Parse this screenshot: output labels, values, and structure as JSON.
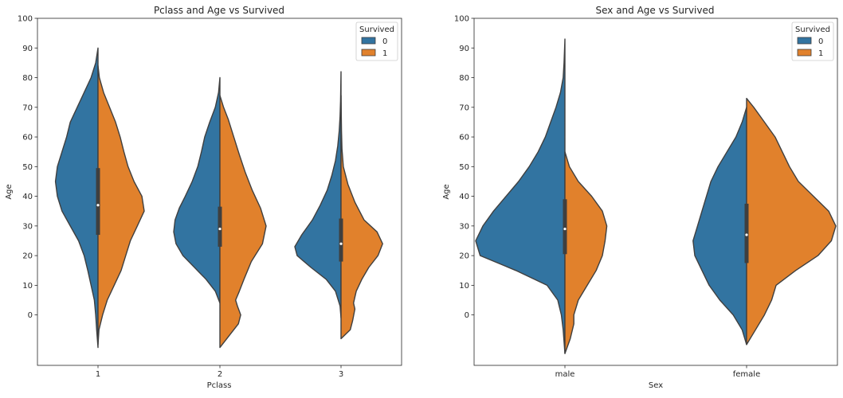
{
  "chart_data": [
    {
      "type": "violin",
      "title": "Pclass and Age vs Survived",
      "xlabel": "Pclass",
      "ylabel": "Age",
      "categories": [
        "1",
        "2",
        "3"
      ],
      "ylim": [
        -17,
        100
      ],
      "yticks": [
        0,
        10,
        20,
        30,
        40,
        50,
        60,
        70,
        80,
        90,
        100
      ],
      "split": true,
      "legend": {
        "title": "Survived",
        "placement": "top-right",
        "entries": [
          "0",
          "1"
        ]
      },
      "colors": {
        "0": "#3274a1",
        "1": "#e1812c",
        "edge": "#3f3f3f",
        "box": "#3f3f3f",
        "median": "#ffffff"
      },
      "series": [
        {
          "name": "0",
          "violins": [
            {
              "category": "1",
              "profile": [
                [
                  -11,
                  0
                ],
                [
                  -5,
                  0.03
                ],
                [
                  0,
                  0.05
                ],
                [
                  5,
                  0.08
                ],
                [
                  10,
                  0.15
                ],
                [
                  15,
                  0.22
                ],
                [
                  20,
                  0.3
                ],
                [
                  25,
                  0.42
                ],
                [
                  30,
                  0.6
                ],
                [
                  35,
                  0.78
                ],
                [
                  40,
                  0.88
                ],
                [
                  45,
                  0.92
                ],
                [
                  50,
                  0.88
                ],
                [
                  55,
                  0.78
                ],
                [
                  60,
                  0.68
                ],
                [
                  65,
                  0.6
                ],
                [
                  70,
                  0.45
                ],
                [
                  75,
                  0.3
                ],
                [
                  80,
                  0.15
                ],
                [
                  85,
                  0.05
                ],
                [
                  90,
                  0
                ]
              ]
            },
            {
              "category": "2",
              "profile": [
                [
                  4,
                  0
                ],
                [
                  8,
                  0.1
                ],
                [
                  12,
                  0.3
                ],
                [
                  16,
                  0.55
                ],
                [
                  20,
                  0.8
                ],
                [
                  24,
                  0.95
                ],
                [
                  28,
                  1.0
                ],
                [
                  32,
                  0.97
                ],
                [
                  36,
                  0.88
                ],
                [
                  40,
                  0.75
                ],
                [
                  45,
                  0.6
                ],
                [
                  50,
                  0.48
                ],
                [
                  55,
                  0.4
                ],
                [
                  60,
                  0.33
                ],
                [
                  65,
                  0.22
                ],
                [
                  70,
                  0.1
                ],
                [
                  75,
                  0.03
                ],
                [
                  80,
                  0
                ]
              ]
            },
            {
              "category": "3",
              "profile": [
                [
                  -1,
                  0
                ],
                [
                  3,
                  0.02
                ],
                [
                  8,
                  0.12
                ],
                [
                  12,
                  0.32
                ],
                [
                  16,
                  0.65
                ],
                [
                  20,
                  0.95
                ],
                [
                  23,
                  1.0
                ],
                [
                  27,
                  0.85
                ],
                [
                  32,
                  0.62
                ],
                [
                  37,
                  0.45
                ],
                [
                  42,
                  0.3
                ],
                [
                  47,
                  0.2
                ],
                [
                  52,
                  0.12
                ],
                [
                  57,
                  0.07
                ],
                [
                  62,
                  0.04
                ],
                [
                  67,
                  0.02
                ],
                [
                  72,
                  0.01
                ],
                [
                  77,
                  0.005
                ],
                [
                  82,
                  0
                ]
              ]
            }
          ],
          "boxes": [
            {
              "category": "1",
              "q1": 27,
              "median": 37,
              "q3": 49.5
            },
            {
              "category": "2",
              "q1": 23,
              "median": 29,
              "q3": 36.5
            },
            {
              "category": "3",
              "q1": 18,
              "median": 24,
              "q3": 32.5
            }
          ]
        },
        {
          "name": "1",
          "violins": [
            {
              "category": "1",
              "profile": [
                [
                  -10,
                  0
                ],
                [
                  -5,
                  0.02
                ],
                [
                  0,
                  0.1
                ],
                [
                  5,
                  0.2
                ],
                [
                  10,
                  0.35
                ],
                [
                  15,
                  0.5
                ],
                [
                  20,
                  0.6
                ],
                [
                  25,
                  0.7
                ],
                [
                  30,
                  0.85
                ],
                [
                  35,
                  1.0
                ],
                [
                  40,
                  0.95
                ],
                [
                  45,
                  0.78
                ],
                [
                  50,
                  0.65
                ],
                [
                  55,
                  0.56
                ],
                [
                  60,
                  0.48
                ],
                [
                  65,
                  0.38
                ],
                [
                  70,
                  0.25
                ],
                [
                  75,
                  0.12
                ],
                [
                  80,
                  0.03
                ],
                [
                  84,
                  0
                ]
              ]
            },
            {
              "category": "2",
              "profile": [
                [
                  -11,
                  0
                ],
                [
                  -7,
                  0.2
                ],
                [
                  -3,
                  0.4
                ],
                [
                  0,
                  0.45
                ],
                [
                  3,
                  0.38
                ],
                [
                  5,
                  0.34
                ],
                [
                  8,
                  0.42
                ],
                [
                  12,
                  0.52
                ],
                [
                  18,
                  0.68
                ],
                [
                  24,
                  0.92
                ],
                [
                  30,
                  1.0
                ],
                [
                  36,
                  0.88
                ],
                [
                  42,
                  0.7
                ],
                [
                  48,
                  0.55
                ],
                [
                  54,
                  0.42
                ],
                [
                  60,
                  0.3
                ],
                [
                  66,
                  0.18
                ],
                [
                  70,
                  0.08
                ],
                [
                  74,
                  0
                ]
              ]
            },
            {
              "category": "3",
              "profile": [
                [
                  -8,
                  0
                ],
                [
                  -5,
                  0.2
                ],
                [
                  -2,
                  0.25
                ],
                [
                  2,
                  0.3
                ],
                [
                  4,
                  0.27
                ],
                [
                  8,
                  0.33
                ],
                [
                  12,
                  0.45
                ],
                [
                  16,
                  0.6
                ],
                [
                  20,
                  0.8
                ],
                [
                  24,
                  0.9
                ],
                [
                  28,
                  0.78
                ],
                [
                  32,
                  0.5
                ],
                [
                  38,
                  0.3
                ],
                [
                  44,
                  0.15
                ],
                [
                  50,
                  0.05
                ],
                [
                  56,
                  0.02
                ],
                [
                  62,
                  0.01
                ],
                [
                  68,
                  0.005
                ],
                [
                  74,
                  0
                ]
              ]
            }
          ]
        }
      ]
    },
    {
      "type": "violin",
      "title": "Sex and Age vs Survived",
      "xlabel": "Sex",
      "ylabel": "Age",
      "categories": [
        "male",
        "female"
      ],
      "ylim": [
        -17,
        100
      ],
      "yticks": [
        0,
        10,
        20,
        30,
        40,
        50,
        60,
        70,
        80,
        90,
        100
      ],
      "split": true,
      "legend": {
        "title": "Survived",
        "placement": "top-right",
        "entries": [
          "0",
          "1"
        ]
      },
      "colors": {
        "0": "#3274a1",
        "1": "#e1812c",
        "edge": "#3f3f3f",
        "box": "#3f3f3f",
        "median": "#ffffff"
      },
      "series": [
        {
          "name": "0",
          "violins": [
            {
              "category": "male",
              "profile": [
                [
                  -13,
                  0
                ],
                [
                  -5,
                  0.02
                ],
                [
                  0,
                  0.04
                ],
                [
                  5,
                  0.08
                ],
                [
                  10,
                  0.2
                ],
                [
                  15,
                  0.55
                ],
                [
                  20,
                  0.95
                ],
                [
                  25,
                  1.0
                ],
                [
                  30,
                  0.92
                ],
                [
                  35,
                  0.8
                ],
                [
                  40,
                  0.66
                ],
                [
                  45,
                  0.52
                ],
                [
                  50,
                  0.4
                ],
                [
                  55,
                  0.3
                ],
                [
                  60,
                  0.22
                ],
                [
                  65,
                  0.16
                ],
                [
                  70,
                  0.1
                ],
                [
                  75,
                  0.05
                ],
                [
                  80,
                  0.02
                ],
                [
                  85,
                  0.01
                ],
                [
                  93,
                  0
                ]
              ]
            },
            {
              "category": "female",
              "profile": [
                [
                  -10,
                  0
                ],
                [
                  -5,
                  0.05
                ],
                [
                  0,
                  0.15
                ],
                [
                  5,
                  0.3
                ],
                [
                  10,
                  0.42
                ],
                [
                  15,
                  0.5
                ],
                [
                  20,
                  0.58
                ],
                [
                  25,
                  0.6
                ],
                [
                  30,
                  0.55
                ],
                [
                  35,
                  0.5
                ],
                [
                  40,
                  0.45
                ],
                [
                  45,
                  0.4
                ],
                [
                  50,
                  0.32
                ],
                [
                  55,
                  0.22
                ],
                [
                  60,
                  0.12
                ],
                [
                  65,
                  0.05
                ],
                [
                  70,
                  0
                ]
              ]
            }
          ],
          "boxes": [
            {
              "category": "male",
              "q1": 20.5,
              "median": 29,
              "q3": 39
            },
            {
              "category": "female",
              "q1": 17.5,
              "median": 27,
              "q3": 37.5
            }
          ]
        },
        {
          "name": "1",
          "violins": [
            {
              "category": "male",
              "profile": [
                [
                  -13,
                  0
                ],
                [
                  -8,
                  0.06
                ],
                [
                  -3,
                  0.1
                ],
                [
                  0,
                  0.1
                ],
                [
                  5,
                  0.15
                ],
                [
                  10,
                  0.25
                ],
                [
                  15,
                  0.35
                ],
                [
                  20,
                  0.42
                ],
                [
                  25,
                  0.45
                ],
                [
                  30,
                  0.47
                ],
                [
                  35,
                  0.42
                ],
                [
                  40,
                  0.3
                ],
                [
                  45,
                  0.15
                ],
                [
                  50,
                  0.05
                ],
                [
                  55,
                  0
                ]
              ]
            },
            {
              "category": "female",
              "profile": [
                [
                  -10,
                  0
                ],
                [
                  -5,
                  0.1
                ],
                [
                  0,
                  0.2
                ],
                [
                  5,
                  0.28
                ],
                [
                  10,
                  0.33
                ],
                [
                  15,
                  0.55
                ],
                [
                  20,
                  0.8
                ],
                [
                  25,
                  0.95
                ],
                [
                  30,
                  1.0
                ],
                [
                  35,
                  0.92
                ],
                [
                  40,
                  0.75
                ],
                [
                  45,
                  0.58
                ],
                [
                  50,
                  0.48
                ],
                [
                  55,
                  0.4
                ],
                [
                  60,
                  0.32
                ],
                [
                  65,
                  0.2
                ],
                [
                  70,
                  0.08
                ],
                [
                  73,
                  0
                ]
              ]
            }
          ]
        }
      ]
    }
  ]
}
